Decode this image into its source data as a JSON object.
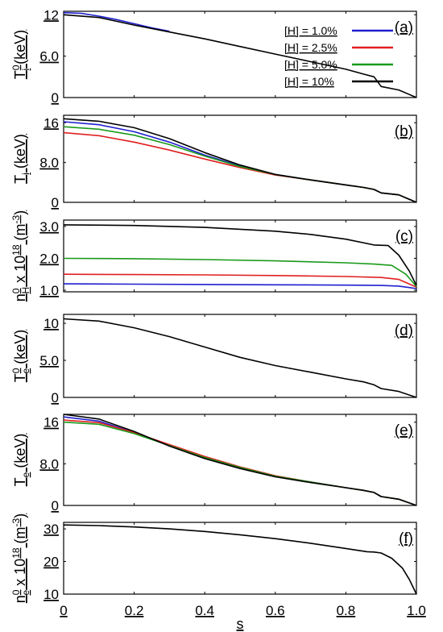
{
  "xaxis": {
    "label": "s",
    "range": [
      0,
      1
    ],
    "ticks": [
      0,
      0.2,
      0.4,
      0.6,
      0.8,
      1.0
    ],
    "ticklabels": [
      "0",
      "0.2",
      "0.4",
      "0.6",
      "0.8",
      "1.0"
    ]
  },
  "legend": {
    "placement": "top-right of panel (a)",
    "entries": [
      {
        "label": "[H] = 1.0%",
        "color": "#1f1fcf"
      },
      {
        "label": "[H] = 2.5%",
        "color": "#e02020"
      },
      {
        "label": "[H] = 5.0%",
        "color": "#1a9a1a"
      },
      {
        "label": "[H] = 10%",
        "color": "#000000"
      }
    ]
  },
  "chart_data": [
    {
      "type": "line",
      "panel": "(a)",
      "ylabel": "T_i^0 (keV)",
      "ylabel_parts": {
        "main": "T",
        "sup": "0",
        "sub": "i",
        "unit": "(keV)"
      },
      "ylim": [
        0,
        12.5
      ],
      "yticks": [
        0,
        6.0,
        12
      ],
      "yticklabels": [
        "0",
        "6.0",
        "12"
      ],
      "series": [
        {
          "name": "[H] = 1.0%",
          "color": "#1f1fcf",
          "x": [
            0,
            0.05,
            0.1,
            0.15,
            0.2,
            0.25,
            0.3
          ],
          "y": [
            12.3,
            12.2,
            11.8,
            11.3,
            10.7,
            10.1,
            9.6
          ]
        },
        {
          "name": "[H] = 10%",
          "color": "#000000",
          "x": [
            0,
            0.1,
            0.2,
            0.3,
            0.4,
            0.5,
            0.6,
            0.7,
            0.8,
            0.85,
            0.88,
            0.9,
            0.95,
            1.0
          ],
          "y": [
            12.0,
            11.6,
            10.5,
            9.5,
            8.5,
            7.4,
            6.3,
            5.2,
            4.1,
            3.4,
            3.0,
            1.6,
            1.1,
            0.0
          ]
        }
      ]
    },
    {
      "type": "line",
      "panel": "(b)",
      "ylabel": "T_i (keV)",
      "ylabel_parts": {
        "main": "T",
        "sup": "",
        "sub": "i",
        "unit": "(keV)"
      },
      "ylim": [
        0,
        17.5
      ],
      "yticks": [
        0,
        8.0,
        16
      ],
      "yticklabels": [
        "0",
        "8.0",
        "16"
      ],
      "series": [
        {
          "name": "[H] = 1.0%",
          "color": "#1f1fcf",
          "x": [
            0,
            0.1,
            0.2,
            0.3,
            0.4,
            0.5,
            0.6,
            0.7,
            0.8,
            0.85,
            0.88,
            0.9,
            0.95,
            1.0
          ],
          "y": [
            16.2,
            15.6,
            14.2,
            12.1,
            9.5,
            7.3,
            5.6,
            4.5,
            3.5,
            3.0,
            2.6,
            1.9,
            1.5,
            0.0
          ]
        },
        {
          "name": "[H] = 2.5%",
          "color": "#e02020",
          "x": [
            0,
            0.1,
            0.2,
            0.3,
            0.4,
            0.5,
            0.6,
            0.7,
            0.8,
            0.85,
            0.88,
            0.9,
            0.95,
            1.0
          ],
          "y": [
            14.0,
            13.4,
            12.1,
            10.5,
            8.7,
            7.0,
            5.5,
            4.5,
            3.5,
            3.0,
            2.6,
            1.9,
            1.5,
            0.0
          ]
        },
        {
          "name": "[H] = 5.0%",
          "color": "#1a9a1a",
          "x": [
            0,
            0.1,
            0.2,
            0.3,
            0.4,
            0.5,
            0.6,
            0.7,
            0.8,
            0.85,
            0.88,
            0.9,
            0.95,
            1.0
          ],
          "y": [
            15.2,
            14.7,
            13.5,
            11.6,
            9.3,
            7.2,
            5.6,
            4.5,
            3.5,
            3.0,
            2.6,
            1.9,
            1.5,
            0.0
          ]
        },
        {
          "name": "[H] = 10%",
          "color": "#000000",
          "x": [
            0,
            0.1,
            0.2,
            0.3,
            0.4,
            0.5,
            0.6,
            0.7,
            0.8,
            0.85,
            0.88,
            0.9,
            0.95,
            1.0
          ],
          "y": [
            16.8,
            16.3,
            15.0,
            12.8,
            10.0,
            7.5,
            5.6,
            4.5,
            3.5,
            3.0,
            2.6,
            1.9,
            1.5,
            0.0
          ]
        }
      ]
    },
    {
      "type": "line",
      "panel": "(c)",
      "ylabel": "n_H^0 x 10^18 (m^-3)",
      "ylabel_parts": {
        "main": "n",
        "sup": "0",
        "sub": "H",
        "unit": "x 10",
        "unit_sup": "18",
        "unit2": "(m",
        "unit2_sup": "-3",
        "unit3": ")"
      },
      "ylim": [
        0.95,
        3.2
      ],
      "yticks": [
        1.0,
        2.0,
        3.0
      ],
      "yticklabels": [
        "1.0",
        "2.0",
        "3.0"
      ],
      "series": [
        {
          "name": "[H] = 1.0%",
          "color": "#1f1fcf",
          "x": [
            0,
            0.2,
            0.4,
            0.6,
            0.8,
            0.9,
            0.95,
            1.0
          ],
          "y": [
            1.2,
            1.19,
            1.18,
            1.17,
            1.16,
            1.15,
            1.13,
            1.05
          ]
        },
        {
          "name": "[H] = 2.5%",
          "color": "#e02020",
          "x": [
            0,
            0.2,
            0.4,
            0.6,
            0.8,
            0.9,
            0.95,
            1.0
          ],
          "y": [
            1.5,
            1.49,
            1.48,
            1.46,
            1.43,
            1.4,
            1.34,
            1.1
          ]
        },
        {
          "name": "[H] = 5.0%",
          "color": "#1a9a1a",
          "x": [
            0,
            0.2,
            0.4,
            0.6,
            0.8,
            0.88,
            0.93,
            0.97,
            1.0
          ],
          "y": [
            2.0,
            1.99,
            1.96,
            1.92,
            1.86,
            1.82,
            1.78,
            1.5,
            1.12
          ]
        },
        {
          "name": "[H] = 10%",
          "color": "#000000",
          "x": [
            0,
            0.2,
            0.4,
            0.6,
            0.7,
            0.8,
            0.88,
            0.92,
            0.95,
            0.98,
            1.0
          ],
          "y": [
            3.05,
            3.03,
            2.97,
            2.85,
            2.75,
            2.6,
            2.42,
            2.4,
            2.1,
            1.6,
            1.15
          ]
        }
      ]
    },
    {
      "type": "line",
      "panel": "(d)",
      "ylabel": "T_e^0 (keV)",
      "ylabel_parts": {
        "main": "T",
        "sup": "0",
        "sub": "e",
        "unit": "(keV)"
      },
      "ylim": [
        0,
        11.2
      ],
      "yticks": [
        0,
        5.0,
        10
      ],
      "yticklabels": [
        "0",
        "5.0",
        "10"
      ],
      "series": [
        {
          "name": "[H] = 10%",
          "color": "#000000",
          "x": [
            0,
            0.1,
            0.2,
            0.3,
            0.4,
            0.5,
            0.6,
            0.7,
            0.8,
            0.85,
            0.88,
            0.9,
            0.95,
            1.0
          ],
          "y": [
            10.6,
            10.3,
            9.4,
            8.2,
            6.8,
            5.4,
            4.3,
            3.4,
            2.5,
            2.1,
            1.7,
            1.2,
            0.8,
            0.0
          ]
        }
      ]
    },
    {
      "type": "line",
      "panel": "(e)",
      "ylabel": "T_e (keV)",
      "ylabel_parts": {
        "main": "T",
        "sup": "",
        "sub": "e",
        "unit": "(keV)"
      },
      "ylim": [
        0,
        17.5
      ],
      "yticks": [
        0,
        8.0,
        16
      ],
      "yticklabels": [
        "0",
        "8.0",
        "16"
      ],
      "series": [
        {
          "name": "[H] = 1.0%",
          "color": "#1f1fcf",
          "x": [
            0,
            0.1,
            0.2,
            0.3,
            0.4,
            0.5,
            0.6,
            0.7,
            0.8,
            0.85,
            0.88,
            0.9,
            0.95,
            1.0
          ],
          "y": [
            17.0,
            16.2,
            14.0,
            11.5,
            9.2,
            7.3,
            5.6,
            4.5,
            3.4,
            2.9,
            2.5,
            1.7,
            1.2,
            0.0
          ]
        },
        {
          "name": "[H] = 2.5%",
          "color": "#e02020",
          "x": [
            0,
            0.1,
            0.2,
            0.3,
            0.4,
            0.5,
            0.6,
            0.7,
            0.8,
            0.85,
            0.88,
            0.9,
            0.95,
            1.0
          ],
          "y": [
            16.4,
            15.9,
            14.0,
            11.7,
            9.4,
            7.4,
            5.7,
            4.5,
            3.4,
            2.9,
            2.5,
            1.7,
            1.2,
            0.0
          ]
        },
        {
          "name": "[H] = 5.0%",
          "color": "#1a9a1a",
          "x": [
            0,
            0.1,
            0.2,
            0.3,
            0.4,
            0.5,
            0.6,
            0.7,
            0.8,
            0.85,
            0.88,
            0.9,
            0.95,
            1.0
          ],
          "y": [
            16.0,
            15.6,
            13.8,
            11.5,
            9.2,
            7.3,
            5.6,
            4.5,
            3.4,
            2.9,
            2.5,
            1.7,
            1.2,
            0.0
          ]
        },
        {
          "name": "[H] = 10%",
          "color": "#000000",
          "x": [
            0,
            0.1,
            0.2,
            0.3,
            0.4,
            0.5,
            0.6,
            0.7,
            0.8,
            0.85,
            0.88,
            0.9,
            0.95,
            1.0
          ],
          "y": [
            17.5,
            16.6,
            14.2,
            11.4,
            9.0,
            7.1,
            5.5,
            4.4,
            3.4,
            2.9,
            2.5,
            1.7,
            1.2,
            0.0
          ]
        }
      ]
    },
    {
      "type": "line",
      "panel": "(f)",
      "ylabel": "n_e^0 x 10^18 (m^-3)",
      "ylabel_parts": {
        "main": "n",
        "sup": "0",
        "sub": "e",
        "unit": "x 10",
        "unit_sup": "18",
        "unit2": "(m",
        "unit2_sup": "-3",
        "unit3": ")"
      },
      "ylim": [
        10,
        32
      ],
      "yticks": [
        10,
        20,
        30
      ],
      "yticklabels": [
        "10",
        "20",
        "30"
      ],
      "series": [
        {
          "name": "[H] = 10%",
          "color": "#000000",
          "x": [
            0,
            0.1,
            0.2,
            0.3,
            0.4,
            0.5,
            0.6,
            0.7,
            0.8,
            0.86,
            0.88,
            0.9,
            0.93,
            0.96,
            0.98,
            1.0
          ],
          "y": [
            31.2,
            31.0,
            30.6,
            30.0,
            29.2,
            28.2,
            27.0,
            25.6,
            24.0,
            23.0,
            22.9,
            22.6,
            21.0,
            18.0,
            14.5,
            10.0
          ]
        }
      ]
    }
  ]
}
